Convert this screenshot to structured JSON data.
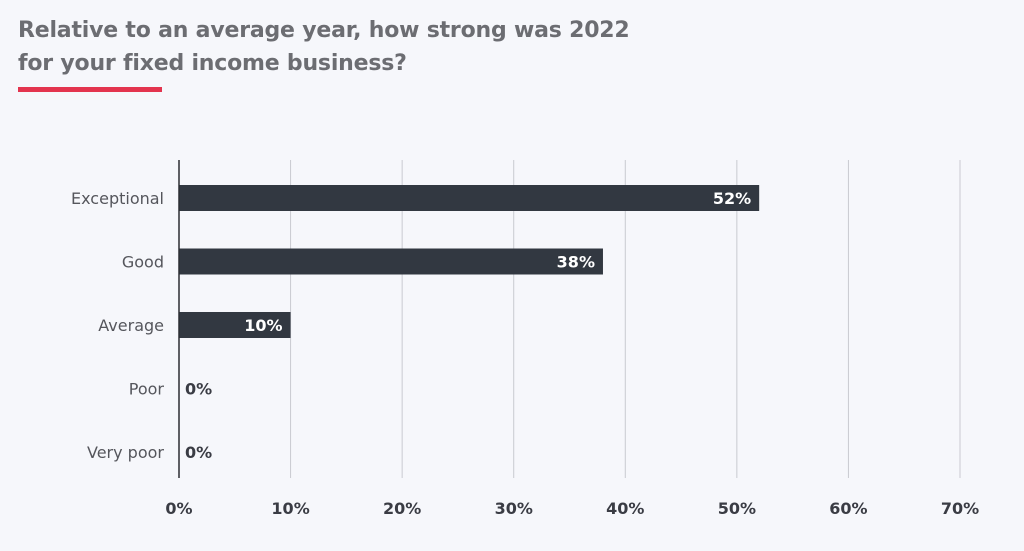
{
  "title": {
    "line1": "Relative to an average year, how strong was 2022",
    "line2": "for your fixed income business?"
  },
  "colors": {
    "bar": "#323841",
    "accent": "#e3344e",
    "background": "#f6f7fb",
    "grid": "#c9cad0",
    "value_label_inside": "#ffffff",
    "value_label_outside": "#3a3c44"
  },
  "chart_data": {
    "type": "bar",
    "orientation": "horizontal",
    "categories": [
      "Exceptional",
      "Good",
      "Average",
      "Poor",
      "Very poor"
    ],
    "values": [
      52,
      38,
      10,
      0,
      0
    ],
    "value_labels": [
      "52%",
      "38%",
      "10%",
      "0%",
      "0%"
    ],
    "x_ticks": [
      "0%",
      "10%",
      "20%",
      "30%",
      "40%",
      "50%",
      "60%",
      "70%"
    ],
    "xlim": [
      0,
      70
    ],
    "grid": true
  }
}
